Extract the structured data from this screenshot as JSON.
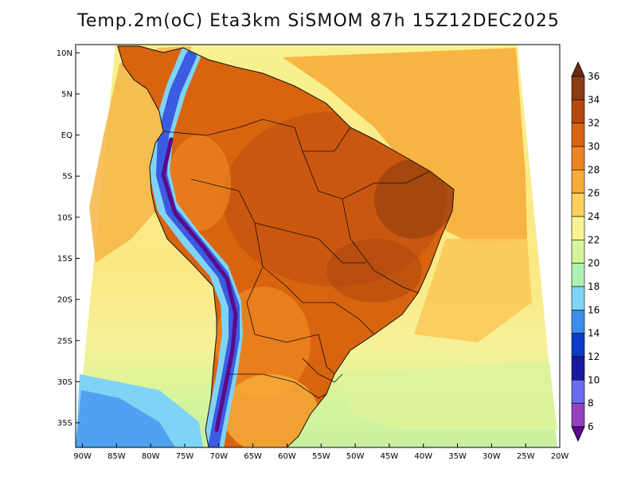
{
  "title": "Temp.2m(oC) Eta3km SiSMOM 87h 15Z12DEC2025",
  "map": {
    "lon_range": [
      -91,
      -20
    ],
    "lat_range": [
      -38,
      11
    ],
    "lat_ticks": [
      "10N",
      "5N",
      "EQ",
      "5S",
      "10S",
      "15S",
      "20S",
      "25S",
      "30S",
      "35S"
    ],
    "lat_values": [
      10,
      5,
      0,
      -5,
      -10,
      -15,
      -20,
      -25,
      -30,
      -35
    ],
    "lon_ticks": [
      "90W",
      "85W",
      "80W",
      "75W",
      "70W",
      "65W",
      "60W",
      "55W",
      "50W",
      "45W",
      "40W",
      "35W",
      "30W",
      "25W",
      "20W"
    ],
    "lon_values": [
      -90,
      -85,
      -80,
      -75,
      -70,
      -65,
      -60,
      -55,
      -50,
      -45,
      -40,
      -35,
      -30,
      -25,
      -20
    ]
  },
  "colorbar": {
    "labels": [
      "36",
      "34",
      "32",
      "30",
      "28",
      "26",
      "24",
      "22",
      "20",
      "18",
      "16",
      "14",
      "12",
      "10",
      "8",
      "6"
    ],
    "colors": [
      "#6b2a12",
      "#8b3a12",
      "#b5480e",
      "#d8640f",
      "#ee8421",
      "#f6ab3a",
      "#fbd15c",
      "#f9f38f",
      "#d6f59a",
      "#aef2b2",
      "#7fd4f5",
      "#3b8cf0",
      "#0a3cc8",
      "#1a1aa0",
      "#6a6af0",
      "#9540c0",
      "#5a0a8a"
    ]
  }
}
